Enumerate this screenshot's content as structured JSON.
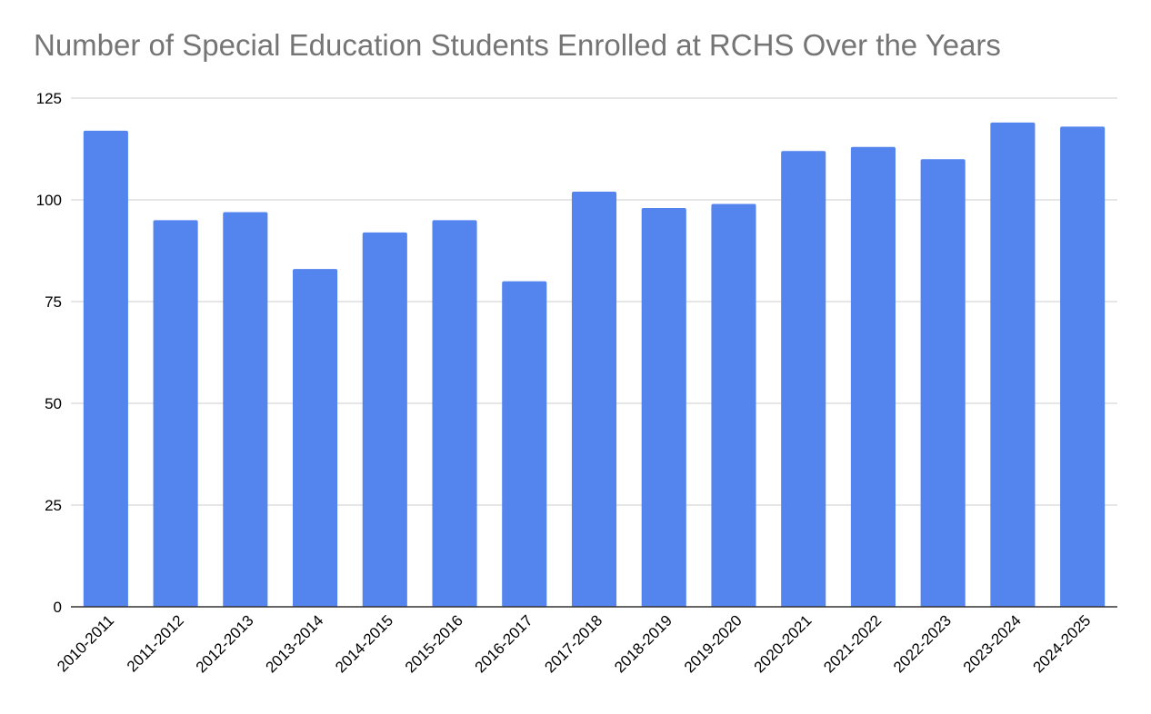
{
  "chart_data": {
    "type": "bar",
    "title": "Number of Special Education Students Enrolled at RCHS Over the Years",
    "xlabel": "",
    "ylabel": "",
    "categories": [
      "2010-2011",
      "2011-2012",
      "2012-2013",
      "2013-2014",
      "2014-2015",
      "2015-2016",
      "2016-2017",
      "2017-2018",
      "2018-2019",
      "2019-2020",
      "2020-2021",
      "2021-2022",
      "2022-2023",
      "2023-2024",
      "2024-2025"
    ],
    "values": [
      117,
      95,
      97,
      83,
      92,
      95,
      80,
      102,
      98,
      99,
      112,
      113,
      110,
      119,
      118
    ],
    "ylim": [
      0,
      125
    ],
    "yticks": [
      "0",
      "25",
      "50",
      "75",
      "100",
      "125"
    ],
    "grid": true,
    "legend": "none",
    "bar_color": "#5484ed"
  }
}
